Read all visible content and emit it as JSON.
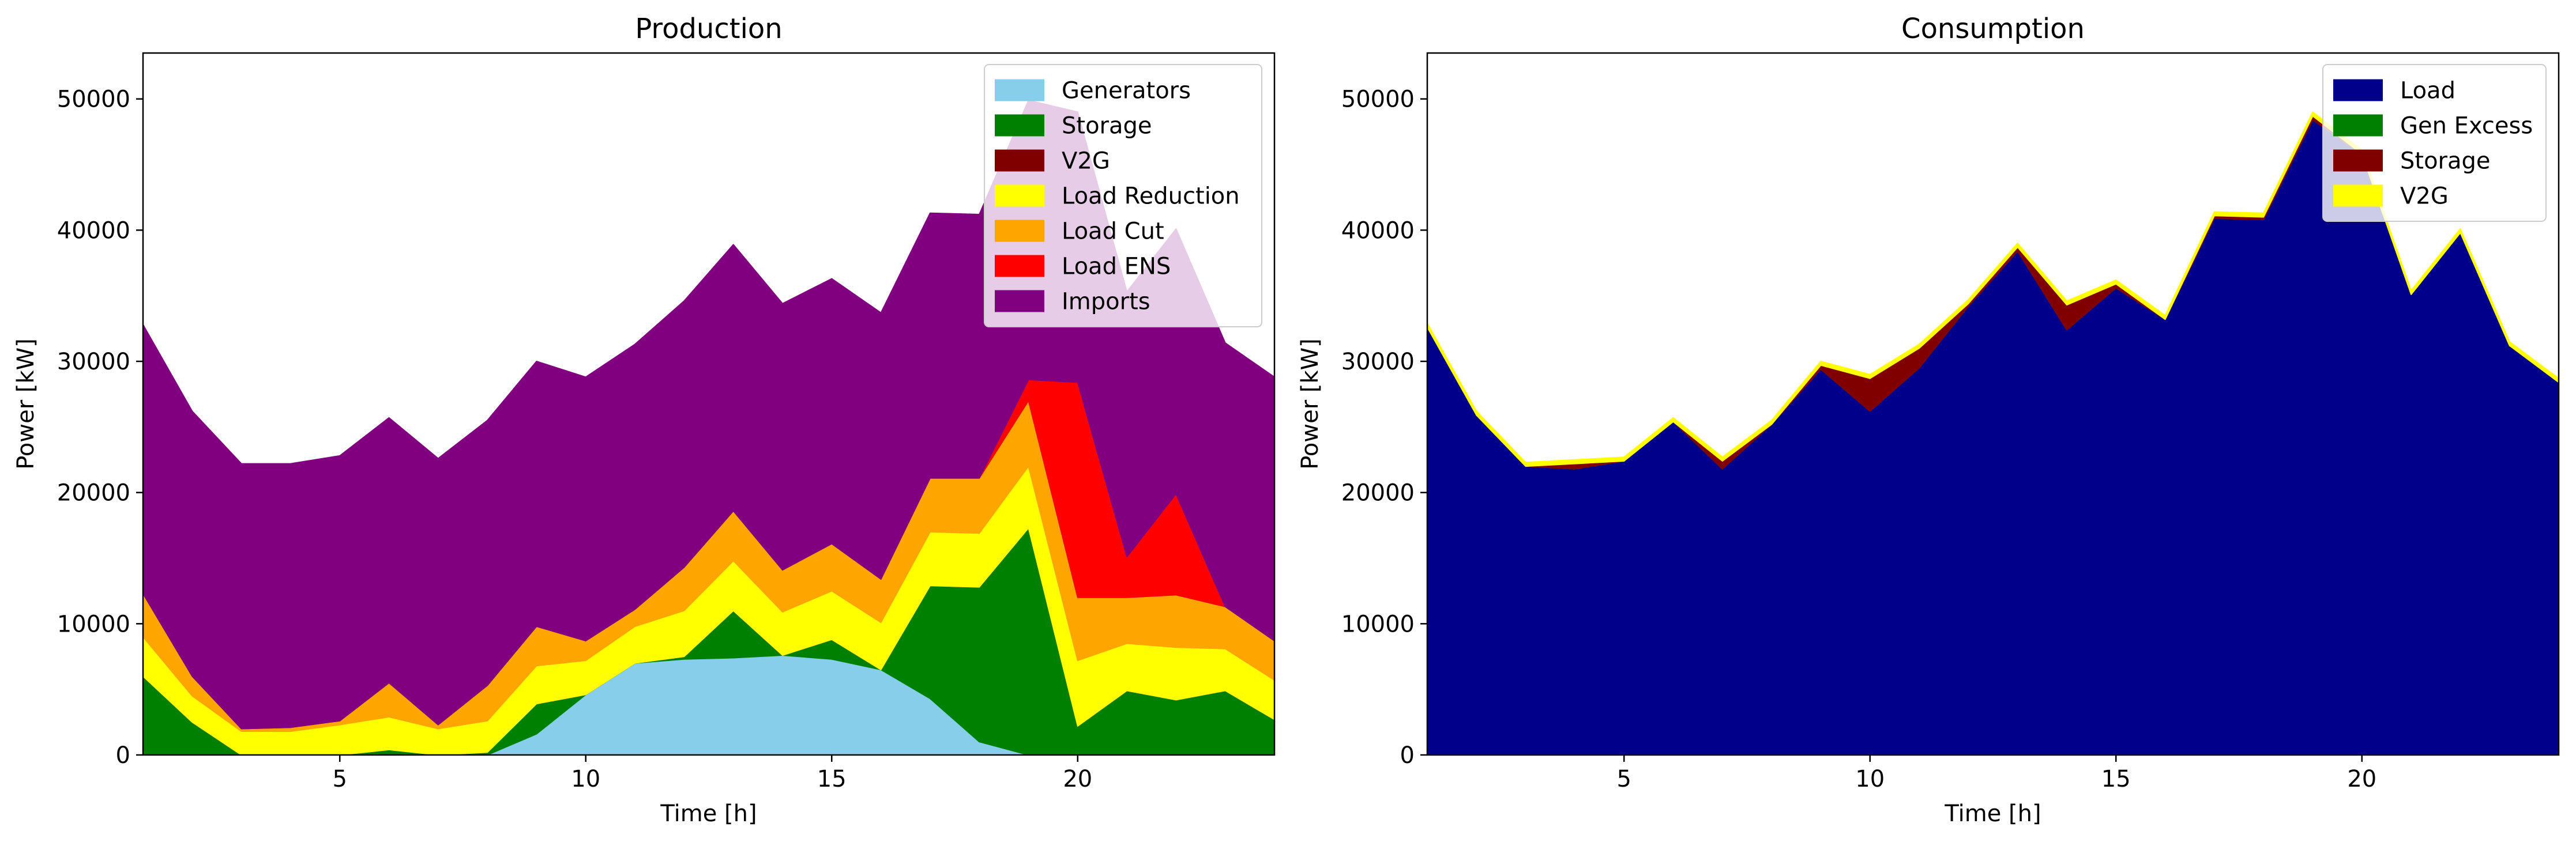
{
  "chart_data": [
    {
      "type": "area",
      "stacked": true,
      "title": "Production",
      "xlabel": "Time [h]",
      "ylabel": "Power [kW]",
      "xlim": [
        1,
        24
      ],
      "ylim": [
        0,
        53500
      ],
      "xticks": [
        5,
        10,
        15,
        20
      ],
      "yticks": [
        0,
        10000,
        20000,
        30000,
        40000,
        50000
      ],
      "legend_position": "top-right",
      "x": [
        1,
        2,
        3,
        4,
        5,
        6,
        7,
        8,
        9,
        10,
        11,
        12,
        13,
        14,
        15,
        16,
        17,
        18,
        19,
        20,
        21,
        22,
        23,
        24
      ],
      "series": [
        {
          "name": "Generators",
          "color": "#87CEEB",
          "values": [
            0,
            0,
            0,
            0,
            0,
            0,
            0,
            0,
            1600,
            4600,
            7000,
            7300,
            7400,
            7600,
            7300,
            6500,
            4300,
            1000,
            0,
            0,
            0,
            0,
            0,
            0
          ]
        },
        {
          "name": "Storage",
          "color": "#008000",
          "values": [
            6000,
            2500,
            0,
            0,
            0,
            400,
            0,
            200,
            2300,
            0,
            0,
            200,
            3600,
            0,
            1500,
            0,
            8600,
            11800,
            17300,
            2200,
            4900,
            4200,
            4900,
            2700
          ]
        },
        {
          "name": "V2G",
          "color": "#800000",
          "values": [
            0,
            0,
            0,
            0,
            0,
            0,
            0,
            0,
            0,
            0,
            0,
            0,
            0,
            0,
            0,
            0,
            0,
            0,
            0,
            0,
            0,
            0,
            0,
            0
          ]
        },
        {
          "name": "Load Reduction",
          "color": "#FFFF00",
          "values": [
            3000,
            2000,
            1800,
            1800,
            2300,
            2500,
            2000,
            2400,
            2900,
            2600,
            2800,
            3500,
            3800,
            3300,
            3700,
            3600,
            4100,
            4100,
            4700,
            5000,
            3600,
            4000,
            3200,
            3000
          ]
        },
        {
          "name": "Load Cut",
          "color": "#FFA500",
          "values": [
            3300,
            1500,
            200,
            300,
            300,
            2600,
            300,
            2700,
            3000,
            1500,
            1300,
            3300,
            3800,
            3200,
            3600,
            3300,
            4100,
            4200,
            5000,
            4800,
            3500,
            4000,
            3200,
            3000
          ]
        },
        {
          "name": "Load ENS",
          "color": "#FF0000",
          "values": [
            0,
            0,
            0,
            0,
            0,
            0,
            0,
            0,
            0,
            0,
            0,
            0,
            0,
            0,
            0,
            0,
            0,
            0,
            1600,
            16400,
            3100,
            7700,
            0,
            0
          ]
        },
        {
          "name": "Imports",
          "color": "#800080",
          "values": [
            20500,
            20200,
            20200,
            20100,
            20200,
            20200,
            20300,
            20200,
            20200,
            20100,
            20200,
            20300,
            20300,
            20300,
            20200,
            20300,
            20200,
            20100,
            21300,
            20600,
            20200,
            20200,
            20100,
            20100
          ]
        }
      ]
    },
    {
      "type": "area",
      "stacked": true,
      "title": "Consumption",
      "xlabel": "Time [h]",
      "ylabel": "Power [kW]",
      "xlim": [
        1,
        24
      ],
      "ylim": [
        0,
        53500
      ],
      "xticks": [
        5,
        10,
        15,
        20
      ],
      "yticks": [
        0,
        10000,
        20000,
        30000,
        40000,
        50000
      ],
      "legend_position": "top-right",
      "x": [
        1,
        2,
        3,
        4,
        5,
        6,
        7,
        8,
        9,
        10,
        11,
        12,
        13,
        14,
        15,
        16,
        17,
        18,
        19,
        20,
        21,
        22,
        23,
        24
      ],
      "series": [
        {
          "name": "Load",
          "color": "#00008B",
          "values": [
            32600,
            25900,
            22000,
            21800,
            22400,
            25400,
            21800,
            25200,
            29400,
            26200,
            29500,
            34200,
            38400,
            32400,
            35600,
            33200,
            40900,
            40800,
            48400,
            45800,
            35100,
            39800,
            31200,
            28400
          ]
        },
        {
          "name": "Gen Excess",
          "color": "#008000",
          "values": [
            0,
            0,
            0,
            0,
            0,
            0,
            0,
            0,
            0,
            0,
            0,
            0,
            0,
            0,
            0,
            0,
            0,
            0,
            0,
            0,
            0,
            0,
            0,
            0
          ]
        },
        {
          "name": "Storage",
          "color": "#800000",
          "values": [
            0,
            0,
            0,
            400,
            0,
            0,
            600,
            0,
            300,
            2500,
            1500,
            200,
            300,
            1900,
            300,
            0,
            200,
            200,
            300,
            0,
            0,
            0,
            0,
            0
          ]
        },
        {
          "name": "V2G",
          "color": "#FFFF00",
          "values": [
            300,
            300,
            300,
            300,
            300,
            300,
            300,
            300,
            300,
            300,
            300,
            300,
            300,
            300,
            300,
            300,
            300,
            300,
            300,
            300,
            300,
            300,
            300,
            300
          ]
        }
      ]
    }
  ]
}
